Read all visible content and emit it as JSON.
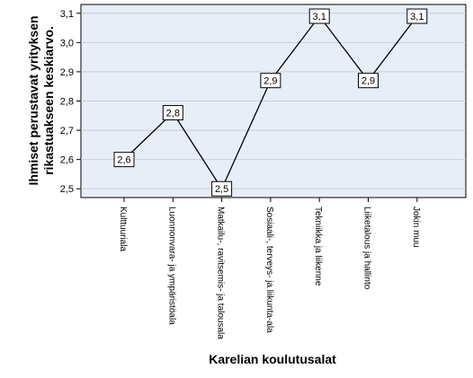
{
  "chart_data": {
    "type": "line",
    "xlabel": "Karelian koulutusalat",
    "ylabel": [
      "Ihmiset perustavat yrityksen",
      "rikastuakseen keskiarvo."
    ],
    "categories": [
      "Kulttuuriala",
      "Luonnonvara- ja ympäristöala",
      "Matkailu-, ravitsemis- ja talousala",
      "Sosiaali-, terveys- ja liikunta-ala",
      "Tekniikka ja liikenne",
      "Liiketalous ja hallinto",
      "Jokin muu"
    ],
    "values": [
      2.6,
      2.76,
      2.5,
      2.87,
      3.09,
      2.87,
      3.09
    ],
    "value_labels": [
      "2,6",
      "2,8",
      "2,5",
      "2,9",
      "3,1",
      "2,9",
      "3,1"
    ],
    "yticks": [
      2.5,
      2.6,
      2.7,
      2.8,
      2.9,
      3.0,
      3.1
    ],
    "ytick_labels": [
      "2,5",
      "2,6",
      "2,7",
      "2,8",
      "2,9",
      "3,0",
      "3,1"
    ],
    "ylim": [
      2.47,
      3.13
    ],
    "grid": true,
    "colors": {
      "plot_bg": "#e8eef8",
      "grid": "#c8cdd6",
      "line": "#000000"
    }
  }
}
